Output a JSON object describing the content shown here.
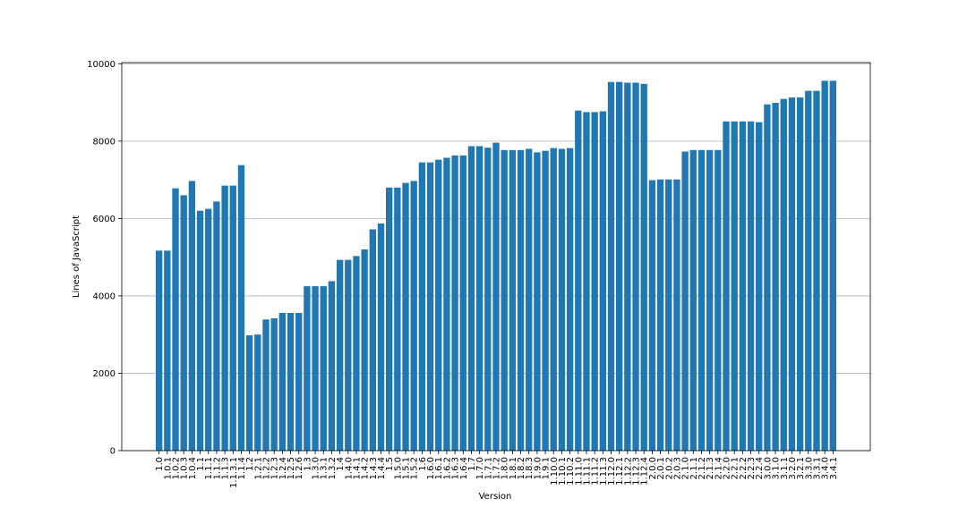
{
  "chart_data": {
    "type": "bar",
    "x_label": "Version",
    "y_label": "Lines of JavaScript",
    "categories": [
      "1.0",
      "1.0.1",
      "1.0.2",
      "1.0.3",
      "1.0.4",
      "1.1",
      "1.1.1",
      "1.1.2",
      "1.1.3",
      "1.1.3.1",
      "1.1.4",
      "1.2",
      "1.2.1",
      "1.2.2",
      "1.2.3",
      "1.2.4",
      "1.2.5",
      "1.2.6",
      "1.3",
      "1.3.0",
      "1.3.1",
      "1.3.2",
      "1.4",
      "1.4.0",
      "1.4.1",
      "1.4.2",
      "1.4.3",
      "1.4.4",
      "1.5",
      "1.5.0",
      "1.5.1",
      "1.5.2",
      "1.6",
      "1.6.0",
      "1.6.1",
      "1.6.2",
      "1.6.3",
      "1.6.4",
      "1.7",
      "1.7.0",
      "1.7.1",
      "1.7.2",
      "1.8.0",
      "1.8.1",
      "1.8.2",
      "1.8.3",
      "1.9.0",
      "1.9.1",
      "1.10.0",
      "1.10.1",
      "1.10.2",
      "1.11.0",
      "1.11.1",
      "1.11.2",
      "1.11.3",
      "1.12.0",
      "1.12.1",
      "1.12.2",
      "1.12.3",
      "1.12.4",
      "2.0.0",
      "2.0.1",
      "2.0.2",
      "2.0.3",
      "2.1.0",
      "2.1.1",
      "2.1.2",
      "2.1.3",
      "2.1.4",
      "2.2.0",
      "2.2.1",
      "2.2.2",
      "2.2.3",
      "2.2.4",
      "3.0.0",
      "3.1.0",
      "3.1.1",
      "3.2.0",
      "3.2.1",
      "3.3.0",
      "3.3.1",
      "3.4.0",
      "3.4.1"
    ],
    "values": [
      5170,
      5170,
      6780,
      6600,
      6970,
      6200,
      6250,
      6440,
      6850,
      6850,
      7380,
      2980,
      3000,
      3390,
      3420,
      3560,
      3560,
      3560,
      4250,
      4250,
      4250,
      4380,
      4930,
      4930,
      5030,
      5200,
      5720,
      5870,
      6800,
      6800,
      6920,
      6970,
      7450,
      7450,
      7520,
      7570,
      7630,
      7630,
      7870,
      7870,
      7830,
      7960,
      7770,
      7770,
      7770,
      7800,
      7710,
      7750,
      7820,
      7800,
      7820,
      8790,
      8750,
      8750,
      8770,
      9530,
      9530,
      9510,
      9510,
      9480,
      6990,
      7010,
      7010,
      7010,
      7730,
      7770,
      7770,
      7770,
      7770,
      8510,
      8510,
      8510,
      8510,
      8490,
      8950,
      8990,
      9090,
      9130,
      9130,
      9300,
      9300,
      9560,
      9560
    ],
    "color": "#1f77b4",
    "ylim": [
      0,
      10030
    ],
    "yticks": [
      0,
      2000,
      4000,
      6000,
      8000,
      10000
    ],
    "grid": true
  }
}
